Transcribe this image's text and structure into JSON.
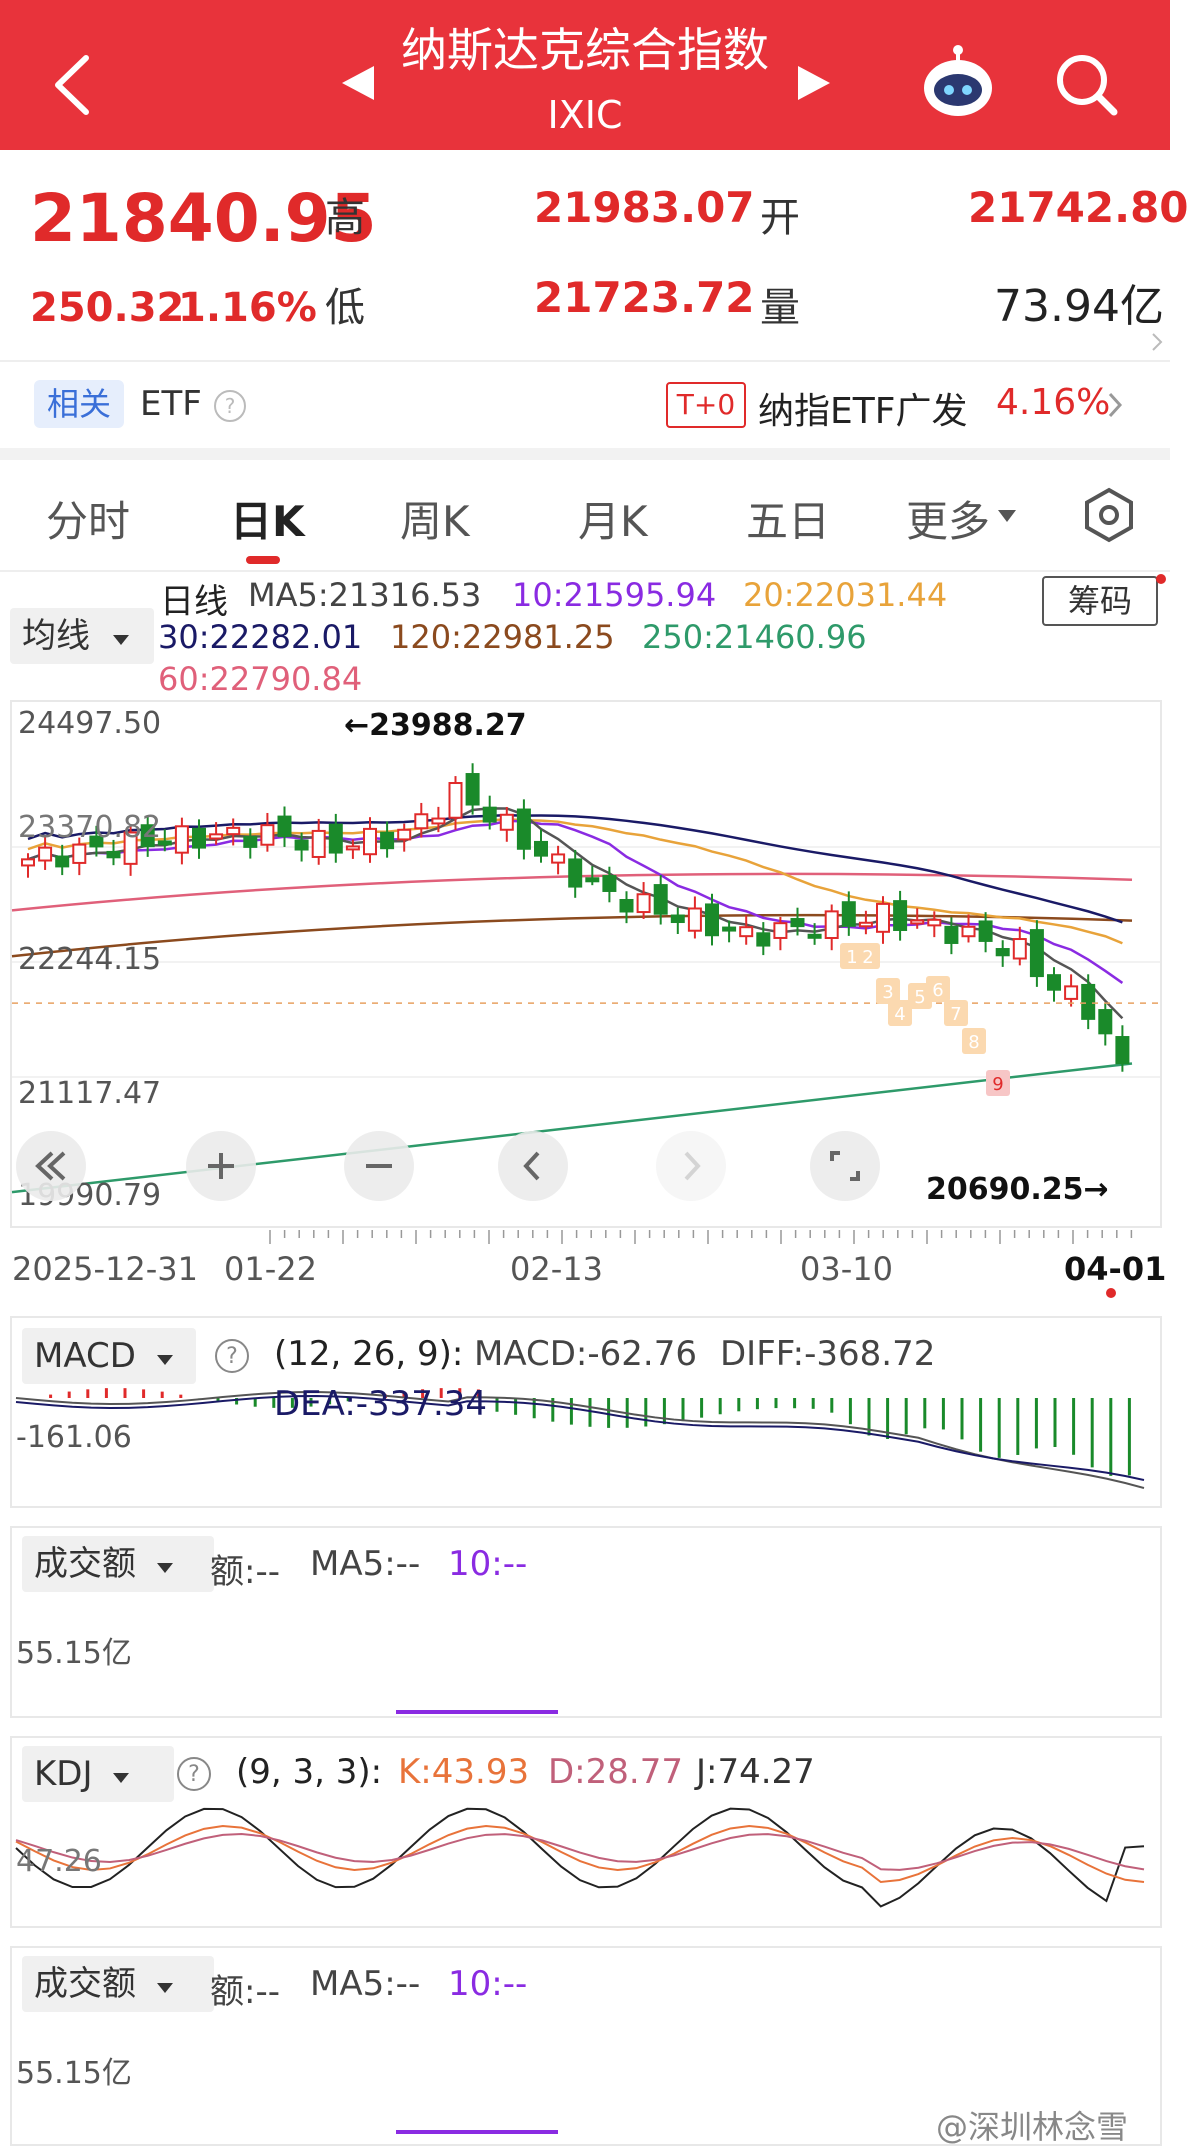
{
  "header": {
    "title": "纳斯达克综合指数",
    "code": "IXIC",
    "back_icon": "back-arrow-icon",
    "robot_icon": "robot-assistant-icon",
    "search_icon": "search-icon"
  },
  "quote": {
    "price": "21840.95",
    "change": "250.32",
    "change_pct": "1.16%",
    "high_label": "高",
    "high": "21983.07",
    "open_label": "开",
    "open": "21742.80",
    "low_label": "低",
    "low": "21723.72",
    "vol_label": "量",
    "volume": "73.94亿"
  },
  "etf": {
    "related_label": "相关",
    "etf_label": "ETF",
    "t0_badge": "T+0",
    "fund_name": "纳指ETF广发",
    "fund_change": "4.16%"
  },
  "tabs": [
    "分时",
    "日K",
    "周K",
    "月K",
    "五日",
    "更多"
  ],
  "active_tab": "日K",
  "chart_controls": {
    "ma_selector": "均线",
    "chip_button": "筹码",
    "day_line": "日线",
    "ma5": "MA5:21316.53",
    "ma10": "10:21595.94",
    "ma20": "20:22031.44",
    "ma30": "30:22282.01",
    "ma120": "120:22981.25",
    "ma250": "250:21460.96",
    "ma60": "60:22790.84"
  },
  "price_axis": {
    "y1": "24497.50",
    "y2": "23370.82",
    "y3": "22244.15",
    "y4": "21117.47",
    "y5": "19990.79",
    "max_note": "←23988.27",
    "min_note": "20690.25→"
  },
  "date_axis": [
    "2025-12-31",
    "01-22",
    "02-13",
    "03-10",
    "04-01"
  ],
  "macd": {
    "selector": "MACD",
    "params": "(12, 26, 9):",
    "macd": "MACD:-62.76",
    "diff": "DIFF:-368.72",
    "dea": "DEA:-337.34",
    "axis": "-161.06"
  },
  "volume_panel": {
    "selector": "成交额",
    "amount": "额:--",
    "ma5": "MA5:--",
    "ma10": "10:--",
    "axis": "55.15亿"
  },
  "kdj": {
    "selector": "KDJ",
    "params": "(9, 3, 3):",
    "k": "K:43.93",
    "d": "D:28.77",
    "j": "J:74.27",
    "axis": "47.26"
  },
  "volume_panel2": {
    "selector": "成交额",
    "amount": "额:--",
    "ma5": "MA5:--",
    "ma10": "10:--",
    "axis": "55.15亿"
  },
  "watermark": "@深圳林念雪",
  "tdseq_numbers": [
    "1",
    "2",
    "3",
    "4",
    "5",
    "6",
    "7",
    "8",
    "9"
  ],
  "colors": {
    "header": "#e8333b",
    "up": "#e02a2a",
    "down": "#1a8a2a",
    "ma10": "#8a2be2",
    "ma20": "#e8a33a",
    "ma30": "#1a1a66",
    "ma120": "#8b4a1e",
    "ma250": "#2e9a6a",
    "ma60": "#e0607a"
  },
  "chart_data": {
    "type": "candlestick",
    "title": "纳斯达克综合指数",
    "x_labels": [
      "2025-12-31",
      "01-22",
      "02-13",
      "03-10",
      "04-01"
    ],
    "ylim": [
      19990.79,
      24497.5
    ],
    "max": 23988.27,
    "min": 20690.25,
    "series": [
      {
        "name": "MA5",
        "last": 21316.53
      },
      {
        "name": "10",
        "last": 21595.94
      },
      {
        "name": "20",
        "last": 22031.44
      },
      {
        "name": "30",
        "last": 22282.01
      },
      {
        "name": "60",
        "last": 22790.84
      },
      {
        "name": "120",
        "last": 22981.25
      },
      {
        "name": "250",
        "last": 21460.96
      }
    ],
    "kdj": {
      "K": 43.93,
      "D": 28.77,
      "J": 74.27
    },
    "macd": {
      "MACD": -62.76,
      "DIFF": -368.72,
      "DEA": -337.34
    }
  }
}
